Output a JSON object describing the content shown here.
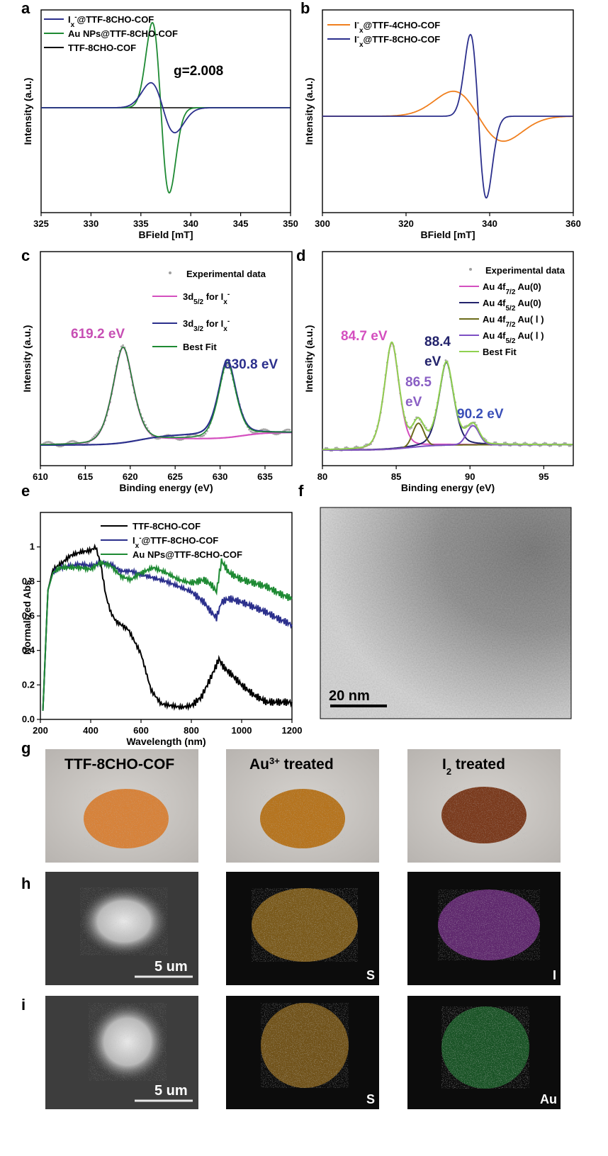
{
  "panels": {
    "a": "a",
    "b": "b",
    "c": "c",
    "d": "d",
    "e": "e",
    "f": "f",
    "g": "g",
    "h": "h",
    "i": "i"
  },
  "chart_data": [
    {
      "id": "a",
      "type": "line",
      "xlabel": "BField [mT]",
      "ylabel": "Intensity (a.u.)",
      "xlim": [
        325,
        350
      ],
      "xticks": [
        325,
        330,
        335,
        340,
        345,
        350
      ],
      "annotation": "g=2.008",
      "legend_position": "top-left",
      "series": [
        {
          "name": "Iₓ⁻@TTF-8CHO-COF",
          "name_main": "I",
          "name_sub": "x",
          "name_sup": "-",
          "name_rest": "@TTF-8CHO-COF",
          "color": "#2b2f8c",
          "center": 337.2,
          "amplitude": 0.22,
          "width": 1.2
        },
        {
          "name": "Au NPs@TTF-8CHO-COF",
          "color": "#1e8a33",
          "center": 337.0,
          "amplitude": 0.75,
          "width": 0.85
        },
        {
          "name": "TTF-8CHO-COF",
          "color": "#000000",
          "center": 337.0,
          "amplitude": 0.0,
          "width": 1.0
        }
      ]
    },
    {
      "id": "b",
      "type": "line",
      "xlabel": "BField [mT]",
      "ylabel": "Intensity (a.u.)",
      "xlim": [
        300,
        360
      ],
      "xticks": [
        300,
        320,
        340,
        360
      ],
      "legend_position": "top-left",
      "series": [
        {
          "name": "I⁻ₓ@TTF-4CHO-COF",
          "name_main": "I",
          "name_sub": "x",
          "name_sup": "-",
          "name_rest": "@TTF-4CHO-COF",
          "color": "#f07f1e",
          "center": 337.3,
          "amplitude": 0.22,
          "width": 6.0
        },
        {
          "name": "I⁻ₓ@TTF-8CHO-COF",
          "name_main": "I",
          "name_sub": "x",
          "name_sup": "-",
          "name_rest": "@TTF-8CHO-COF",
          "color": "#2b2f8c",
          "center": 337.3,
          "amplitude": 0.72,
          "width": 1.9
        }
      ]
    },
    {
      "id": "c",
      "type": "line",
      "xlabel": "Binding energy (eV)",
      "ylabel": "Intensity (a.u.)",
      "xlim": [
        610,
        638
      ],
      "xticks": [
        610,
        615,
        620,
        625,
        630,
        635
      ],
      "legend_position": "top-right",
      "legend": [
        {
          "name": "Experimental data",
          "kind": "scatter",
          "color": "#a0a0a0"
        },
        {
          "name": "3d5/2 for Ix-",
          "main": "3d",
          "sub": "5/2",
          "mid": " for I",
          "sub2": "x",
          "sup": "-",
          "color": "#d44fbf"
        },
        {
          "name": "3d3/2 for Ix-",
          "main": "3d",
          "sub": "3/2",
          "mid": " for I",
          "sub2": "x",
          "sup": "-",
          "color": "#2b2f8c"
        },
        {
          "name": "Best Fit",
          "color": "#1e8a33"
        }
      ],
      "peaks": [
        {
          "label": "619.2 eV",
          "x": 619.2,
          "height": 1.0,
          "color": "#c74fb4"
        },
        {
          "label": "630.8 eV",
          "x": 630.8,
          "height": 0.78,
          "color": "#2b2f8c"
        }
      ]
    },
    {
      "id": "d",
      "type": "line",
      "xlabel": "Binding energy (eV)",
      "ylabel": "Intensity (a.u.)",
      "xlim": [
        80,
        97
      ],
      "xticks": [
        80,
        85,
        90,
        95
      ],
      "legend_position": "top-right",
      "legend": [
        {
          "name": "Experimental data",
          "kind": "scatter",
          "color": "#a0a0a0"
        },
        {
          "name": "Au 4f7/2 Au(0)",
          "main": "Au 4f",
          "sub": "7/2",
          "rest": " Au(0)",
          "color": "#d44fbf"
        },
        {
          "name": "Au 4f5/2 Au(0)",
          "main": "Au 4f",
          "sub": "5/2",
          "rest": " Au(0)",
          "color": "#22226b"
        },
        {
          "name": "Au 4f7/2 Au( Ⅰ )",
          "main": "Au 4f",
          "sub": "7/2",
          "rest": " Au( Ⅰ )",
          "color": "#6b6b1a"
        },
        {
          "name": "Au 4f5/2 Au( Ⅰ )",
          "main": "Au 4f",
          "sub": "5/2",
          "rest": " Au( Ⅰ )",
          "color": "#7d4fc4"
        },
        {
          "name": "Best Fit",
          "color": "#8fd14f"
        }
      ],
      "peaks": [
        {
          "label": "84.7 eV",
          "x": 84.7,
          "height": 1.0,
          "color": "#d44fbf"
        },
        {
          "label": "86.5 eV",
          "x": 86.5,
          "height": 0.22,
          "color": "#8a5fc4"
        },
        {
          "label": "88.4 eV",
          "x": 88.4,
          "height": 0.78,
          "color": "#22226b"
        },
        {
          "label": "90.2 eV",
          "x": 90.2,
          "height": 0.18,
          "color": "#3a4fb8"
        }
      ]
    },
    {
      "id": "e",
      "type": "line",
      "xlabel": "Wavelength (nm)",
      "ylabel": "Normalized Abs.",
      "xlim": [
        200,
        1200
      ],
      "ylim": [
        0,
        1.2
      ],
      "xticks": [
        200,
        400,
        600,
        800,
        1000,
        1200
      ],
      "yticks": [
        0.0,
        0.2,
        0.4,
        0.6,
        0.8,
        1.0
      ],
      "ytick_labels": [
        "0.0",
        "0.2",
        "0.4",
        "0.6",
        "0.8",
        "1"
      ],
      "legend_position": "top-right",
      "series": [
        {
          "name": "TTF-8CHO-COF",
          "color": "#000000",
          "x": [
            210,
            230,
            250,
            280,
            320,
            360,
            400,
            420,
            440,
            460,
            480,
            500,
            550,
            600,
            640,
            680,
            720,
            760,
            800,
            840,
            880,
            910,
            930,
            960,
            1000,
            1050,
            1100,
            1150,
            1200
          ],
          "y": [
            0.05,
            0.75,
            0.87,
            0.9,
            0.95,
            0.97,
            0.98,
            1.0,
            0.9,
            0.72,
            0.62,
            0.57,
            0.52,
            0.38,
            0.17,
            0.09,
            0.08,
            0.07,
            0.08,
            0.13,
            0.25,
            0.35,
            0.3,
            0.26,
            0.2,
            0.14,
            0.1,
            0.1,
            0.1
          ]
        },
        {
          "name": "Iₓ⁻@TTF-8CHO-COF",
          "name_main": "I",
          "name_sub": "x",
          "name_sup": "-",
          "name_rest": "@TTF-8CHO-COF",
          "color": "#2b2f8c",
          "x": [
            210,
            230,
            250,
            280,
            320,
            360,
            400,
            440,
            480,
            520,
            560,
            600,
            650,
            700,
            750,
            800,
            850,
            880,
            900,
            920,
            950,
            1000,
            1050,
            1100,
            1150,
            1200
          ],
          "y": [
            0.05,
            0.75,
            0.85,
            0.88,
            0.89,
            0.9,
            0.89,
            0.91,
            0.9,
            0.86,
            0.86,
            0.84,
            0.82,
            0.8,
            0.77,
            0.74,
            0.68,
            0.62,
            0.59,
            0.68,
            0.7,
            0.68,
            0.65,
            0.62,
            0.58,
            0.55
          ]
        },
        {
          "name": "Au NPs@TTF-8CHO-COF",
          "color": "#1e8a33",
          "x": [
            210,
            230,
            250,
            280,
            320,
            360,
            400,
            440,
            480,
            520,
            560,
            600,
            650,
            700,
            750,
            800,
            850,
            880,
            900,
            920,
            950,
            1000,
            1050,
            1100,
            1150,
            1200
          ],
          "y": [
            0.05,
            0.75,
            0.85,
            0.88,
            0.88,
            0.88,
            0.87,
            0.91,
            0.89,
            0.83,
            0.81,
            0.85,
            0.88,
            0.85,
            0.81,
            0.79,
            0.81,
            0.78,
            0.74,
            0.92,
            0.85,
            0.81,
            0.79,
            0.77,
            0.73,
            0.7
          ]
        }
      ]
    }
  ],
  "tem": {
    "scale_label": "20 nm"
  },
  "photos": {
    "row_g": [
      "TTF-8CHO-COF",
      "Au³⁺ treated",
      "I₂ treated"
    ],
    "row_g_parts": [
      {
        "main": "TTF-8CHO-COF"
      },
      {
        "main": "Au",
        "sup": "3+",
        "rest": " treated"
      },
      {
        "main": "I",
        "sub": "2",
        "rest": " treated"
      }
    ],
    "row_h": {
      "scale": "5 um",
      "map1": "S",
      "map2": "I"
    },
    "row_i": {
      "scale": "5 um",
      "map1": "S",
      "map2": "Au"
    },
    "colors": {
      "powder1": "#d6823a",
      "powder2": "#b5741f",
      "powder3": "#7a3b1e",
      "sulfur": "#d69a2a",
      "iodine": "#9a3fb0",
      "gold": "#2fae4a"
    }
  }
}
